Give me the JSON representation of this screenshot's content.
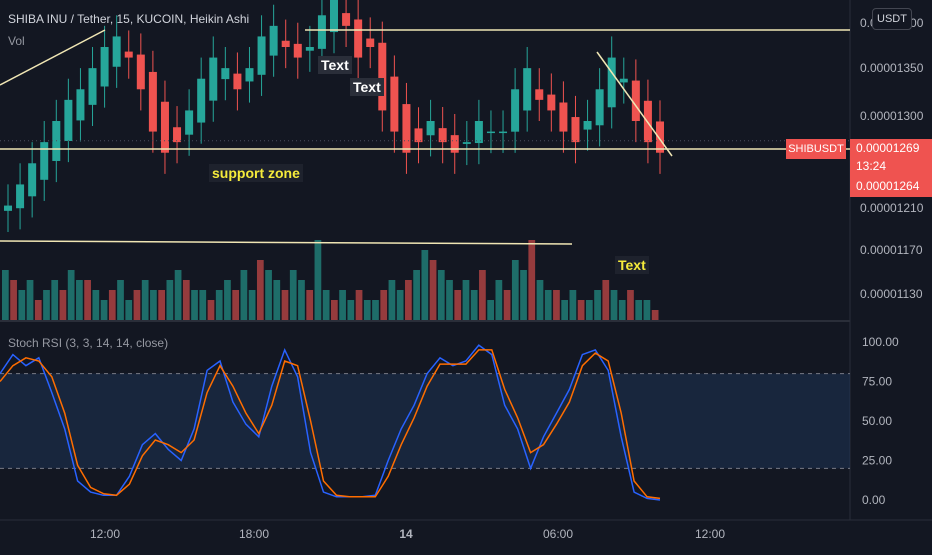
{
  "header": {
    "title": "SHIBA INU / Tether, 15, KUCOIN, Heikin Ashi",
    "volume_label": "Vol",
    "stoch_label": "Stoch RSI (3, 3, 14, 14, close)",
    "currency_button": "USDT"
  },
  "price_tag": {
    "symbol": "SHIBUSDT",
    "price": "0.00001269",
    "countdown": "13:24",
    "second_price": "0.00001264"
  },
  "annotations": [
    {
      "text": "Text"
    },
    {
      "text": "Text"
    },
    {
      "text": "support zone"
    },
    {
      "text": "Text"
    }
  ],
  "axes": {
    "price_ticks": [
      "0.00001400",
      "0.00001350",
      "0.00001300",
      "0.00001210",
      "0.00001170",
      "0.00001130"
    ],
    "stoch_ticks": [
      "100.00",
      "75.00",
      "50.00",
      "25.00",
      "0.00"
    ],
    "time_ticks": [
      "12:00",
      "18:00",
      "14",
      "06:00",
      "12:00"
    ]
  },
  "colors": {
    "background": "#131722",
    "up": "#26a69a",
    "down": "#ef5350",
    "k_line": "#2962ff",
    "d_line": "#ff6d00",
    "trendline": "#f0e6b4",
    "band": "#1e3a5f"
  },
  "chart_data": [
    {
      "type": "candlestick",
      "title": "SHIBA INU / Tether, 15, KUCOIN, Heikin Ashi",
      "ylim": [
        1.195e-05,
        1.405e-05
      ],
      "close": [
        1.22e-05,
        1.24e-05,
        1.26e-05,
        1.28e-05,
        1.3e-05,
        1.32e-05,
        1.33e-05,
        1.35e-05,
        1.37e-05,
        1.38e-05,
        1.36e-05,
        1.33e-05,
        1.29e-05,
        1.27e-05,
        1.28e-05,
        1.31e-05,
        1.34e-05,
        1.36e-05,
        1.35e-05,
        1.33e-05,
        1.35e-05,
        1.38e-05,
        1.39e-05,
        1.37e-05,
        1.36e-05,
        1.37e-05,
        1.4e-05,
        1.42e-05,
        1.39e-05,
        1.36e-05,
        1.37e-05,
        1.31e-05,
        1.29e-05,
        1.27e-05,
        1.28e-05,
        1.3e-05,
        1.28e-05,
        1.27e-05,
        1.28e-05,
        1.3e-05,
        1.29e-05,
        1.29e-05,
        1.33e-05,
        1.35e-05,
        1.32e-05,
        1.31e-05,
        1.29e-05,
        1.28e-05,
        1.3e-05,
        1.33e-05,
        1.36e-05,
        1.34e-05,
        1.3e-05,
        1.28e-05,
        1.27e-05
      ],
      "price_line": 1.269e-05,
      "support_level": 1.27e-05,
      "resistance_level": 1.403e-05
    },
    {
      "type": "bar",
      "title": "Vol",
      "values": [
        5,
        4,
        3,
        4,
        2,
        3,
        4,
        3,
        5,
        4,
        4,
        3,
        2,
        3,
        4,
        2,
        3,
        4,
        3,
        3,
        4,
        5,
        4,
        3,
        3,
        2,
        3,
        4,
        3,
        5,
        3,
        6,
        5,
        4,
        3,
        5,
        4,
        3,
        8,
        3,
        2,
        3,
        2,
        3,
        2,
        2,
        3,
        4,
        3,
        4,
        5,
        7,
        6,
        5,
        4,
        3,
        4,
        3,
        5,
        2,
        4,
        3,
        6,
        5,
        8,
        4,
        3,
        3,
        2,
        3,
        2,
        2,
        3,
        4,
        3,
        2,
        3,
        2,
        2,
        1
      ]
    },
    {
      "type": "line",
      "title": "Stoch RSI (3, 3, 14, 14, close)",
      "ylim": [
        0,
        100
      ],
      "series": [
        {
          "name": "K",
          "values": [
            80,
            92,
            85,
            90,
            68,
            45,
            12,
            5,
            3,
            3,
            15,
            35,
            42,
            32,
            25,
            45,
            82,
            88,
            62,
            48,
            40,
            72,
            95,
            78,
            30,
            5,
            2,
            2,
            2,
            3,
            25,
            45,
            60,
            80,
            90,
            85,
            88,
            98,
            92,
            60,
            45,
            20,
            40,
            55,
            70,
            92,
            95,
            82,
            40,
            5,
            1,
            0
          ]
        },
        {
          "name": "D",
          "values": [
            75,
            85,
            90,
            88,
            78,
            55,
            22,
            8,
            4,
            3,
            10,
            28,
            38,
            35,
            30,
            38,
            68,
            85,
            72,
            55,
            42,
            60,
            88,
            85,
            50,
            12,
            3,
            2,
            2,
            2,
            15,
            35,
            52,
            72,
            86,
            86,
            86,
            95,
            95,
            70,
            52,
            30,
            35,
            48,
            62,
            85,
            93,
            88,
            55,
            12,
            2,
            1
          ]
        }
      ],
      "bands": [
        20,
        80
      ],
      "reference_ticks": [
        0,
        25,
        50,
        75,
        100
      ]
    }
  ]
}
